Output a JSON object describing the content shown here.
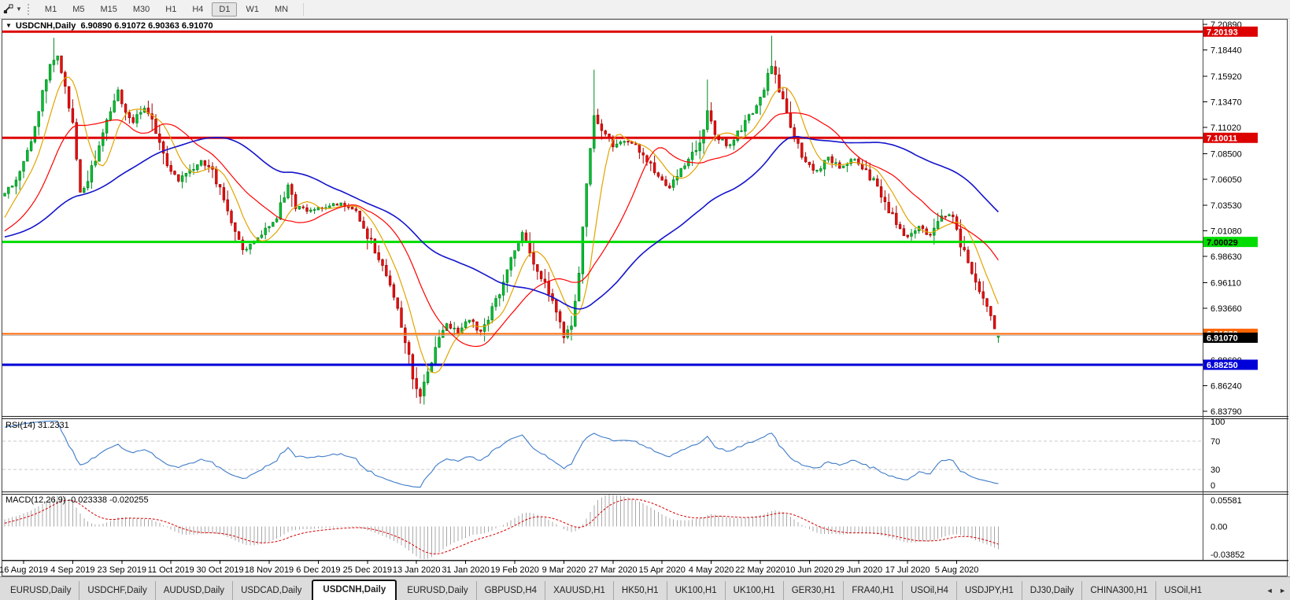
{
  "toolbar": {
    "dropdown_caret": "▼",
    "timeframes": [
      "M1",
      "M5",
      "M15",
      "M30",
      "H1",
      "H4",
      "D1",
      "W1",
      "MN"
    ],
    "active_timeframe": "D1"
  },
  "chart_header": {
    "collapse_icon": "▼",
    "symbol": "USDCNH,Daily",
    "ohlc": "6.90890 6.91072 6.90363 6.91070"
  },
  "price_axis": {
    "ticks": [
      "7.20890",
      "7.18440",
      "7.15920",
      "7.13470",
      "7.11020",
      "7.08500",
      "7.06050",
      "7.03530",
      "7.01080",
      "6.98630",
      "6.96110",
      "6.93660",
      "6.91210",
      "6.88690",
      "6.86240",
      "6.83790"
    ],
    "markers": [
      {
        "label": "7.20193",
        "price": 7.20193,
        "bg": "#DD0000",
        "fg": "#FFFFFF"
      },
      {
        "label": "7.10011",
        "price": 7.10011,
        "bg": "#DD0000",
        "fg": "#FFFFFF"
      },
      {
        "label": "7.00029",
        "price": 7.00029,
        "bg": "#00DC00",
        "fg": "#000000"
      },
      {
        "label": "6.91220",
        "price": 6.9122,
        "bg": "#FF6600",
        "fg": "#FFFFFF"
      },
      {
        "label": "6.91070",
        "price": 6.9107,
        "bg": "#000000",
        "fg": "#FFFFFF"
      },
      {
        "label": "6.88250",
        "price": 6.8825,
        "bg": "#0000D8",
        "fg": "#FFFFFF"
      }
    ]
  },
  "indicators": {
    "rsi": {
      "label": "RSI(14) 31.2331",
      "period": 14,
      "value": 31.2331,
      "levels": [
        "100",
        "70",
        "30",
        "0"
      ]
    },
    "macd": {
      "label": "MACD(12,26,9) -0.023338 -0.020255",
      "fast": 12,
      "slow": 26,
      "signal": 9,
      "value": -0.023338,
      "signal_value": -0.020255,
      "scale": [
        "0.05581",
        "0.00",
        "-0.03852"
      ]
    }
  },
  "date_axis": [
    "16 Aug 2019",
    "4 Sep 2019",
    "23 Sep 2019",
    "11 Oct 2019",
    "30 Oct 2019",
    "18 Nov 2019",
    "6 Dec 2019",
    "25 Dec 2019",
    "13 Jan 2020",
    "31 Jan 2020",
    "19 Feb 2020",
    "9 Mar 2020",
    "27 Mar 2020",
    "15 Apr 2020",
    "4 May 2020",
    "22 May 2020",
    "10 Jun 2020",
    "29 Jun 2020",
    "17 Jul 2020",
    "5 Aug 2020"
  ],
  "tabs": {
    "items": [
      {
        "label": "EURUSD,Daily",
        "active": false
      },
      {
        "label": "USDCHF,Daily",
        "active": false
      },
      {
        "label": "AUDUSD,Daily",
        "active": false
      },
      {
        "label": "USDCAD,Daily",
        "active": false
      },
      {
        "label": "USDCNH,Daily",
        "active": true
      },
      {
        "label": "EURUSD,Daily",
        "active": false
      },
      {
        "label": "GBPUSD,H4",
        "active": false
      },
      {
        "label": "XAUUSD,H1",
        "active": false
      },
      {
        "label": "HK50,H1",
        "active": false
      },
      {
        "label": "UK100,H1",
        "active": false
      },
      {
        "label": "UK100,H1",
        "active": false
      },
      {
        "label": "GER30,H1",
        "active": false
      },
      {
        "label": "FRA40,H1",
        "active": false
      },
      {
        "label": "USOil,H4",
        "active": false
      },
      {
        "label": "USDJPY,H1",
        "active": false
      },
      {
        "label": "DJ30,Daily",
        "active": false
      },
      {
        "label": "CHINA300,H1",
        "active": false
      },
      {
        "label": "USOil,H1",
        "active": false
      }
    ],
    "scroll_left": "◄",
    "scroll_right": "►"
  },
  "chart_data": {
    "type": "candlestick",
    "symbol": "USDCNH",
    "timeframe": "Daily",
    "last_ohlc": {
      "open": 6.9089,
      "high": 6.91072,
      "low": 6.90363,
      "close": 6.9107
    },
    "days": 264,
    "first_label_day": 5,
    "label_step_days": 13,
    "y_axis_top": 7.2089,
    "y_axis_bottom": 6.8379,
    "price_path": [
      [
        0,
        7.048
      ],
      [
        3,
        7.058
      ],
      [
        6,
        7.085
      ],
      [
        9,
        7.128
      ],
      [
        12,
        7.17
      ],
      [
        14,
        7.178
      ],
      [
        16,
        7.15
      ],
      [
        18,
        7.112
      ],
      [
        20,
        7.048
      ],
      [
        22,
        7.06
      ],
      [
        25,
        7.092
      ],
      [
        28,
        7.125
      ],
      [
        30,
        7.146
      ],
      [
        32,
        7.128
      ],
      [
        34,
        7.116
      ],
      [
        37,
        7.13
      ],
      [
        40,
        7.108
      ],
      [
        43,
        7.072
      ],
      [
        46,
        7.058
      ],
      [
        49,
        7.068
      ],
      [
        52,
        7.078
      ],
      [
        55,
        7.07
      ],
      [
        58,
        7.04
      ],
      [
        61,
        7.008
      ],
      [
        63,
        6.992
      ],
      [
        66,
        7.0
      ],
      [
        69,
        7.012
      ],
      [
        72,
        7.024
      ],
      [
        75,
        7.056
      ],
      [
        77,
        7.034
      ],
      [
        81,
        7.03
      ],
      [
        85,
        7.034
      ],
      [
        89,
        7.038
      ],
      [
        93,
        7.028
      ],
      [
        97,
        7.0
      ],
      [
        100,
        6.98
      ],
      [
        103,
        6.948
      ],
      [
        106,
        6.908
      ],
      [
        108,
        6.872
      ],
      [
        110,
        6.852
      ],
      [
        112,
        6.872
      ],
      [
        114,
        6.902
      ],
      [
        117,
        6.922
      ],
      [
        120,
        6.912
      ],
      [
        123,
        6.926
      ],
      [
        126,
        6.914
      ],
      [
        129,
        6.934
      ],
      [
        132,
        6.962
      ],
      [
        135,
        6.995
      ],
      [
        137,
        7.008
      ],
      [
        139,
        6.99
      ],
      [
        142,
        6.968
      ],
      [
        145,
        6.942
      ],
      [
        147,
        6.92
      ],
      [
        148,
        6.908
      ],
      [
        150,
        6.922
      ],
      [
        152,
        6.972
      ],
      [
        154,
        7.058
      ],
      [
        156,
        7.122
      ],
      [
        158,
        7.108
      ],
      [
        161,
        7.092
      ],
      [
        164,
        7.098
      ],
      [
        167,
        7.095
      ],
      [
        170,
        7.078
      ],
      [
        173,
        7.062
      ],
      [
        176,
        7.052
      ],
      [
        179,
        7.068
      ],
      [
        182,
        7.085
      ],
      [
        184,
        7.098
      ],
      [
        186,
        7.126
      ],
      [
        188,
        7.105
      ],
      [
        191,
        7.092
      ],
      [
        194,
        7.104
      ],
      [
        197,
        7.12
      ],
      [
        200,
        7.138
      ],
      [
        202,
        7.158
      ],
      [
        203,
        7.168
      ],
      [
        205,
        7.148
      ],
      [
        207,
        7.122
      ],
      [
        209,
        7.1
      ],
      [
        212,
        7.078
      ],
      [
        215,
        7.068
      ],
      [
        218,
        7.082
      ],
      [
        221,
        7.07
      ],
      [
        224,
        7.08
      ],
      [
        227,
        7.072
      ],
      [
        230,
        7.058
      ],
      [
        233,
        7.038
      ],
      [
        236,
        7.016
      ],
      [
        239,
        7.004
      ],
      [
        242,
        7.014
      ],
      [
        245,
        7.006
      ],
      [
        248,
        7.024
      ],
      [
        251,
        7.026
      ],
      [
        253,
        6.998
      ],
      [
        256,
        6.972
      ],
      [
        258,
        6.955
      ],
      [
        260,
        6.936
      ],
      [
        262,
        6.919
      ],
      [
        263,
        6.9107
      ]
    ],
    "extremes": [
      {
        "day": 13,
        "high": 7.196
      },
      {
        "day": 110,
        "low": 6.8452
      },
      {
        "day": 148,
        "low": 6.903
      },
      {
        "day": 156,
        "high": 7.1655
      },
      {
        "day": 186,
        "high": 7.156
      },
      {
        "day": 203,
        "high": 7.198
      },
      {
        "day": 263,
        "low": 6.90363
      }
    ],
    "horizontal_lines": [
      {
        "price": 7.20193,
        "color": "#DD0000",
        "width": 3
      },
      {
        "price": 7.10011,
        "color": "#DD0000",
        "width": 3
      },
      {
        "price": 7.00029,
        "color": "#00DC00",
        "width": 3
      },
      {
        "price": 6.9122,
        "color": "#FF6600",
        "width": 2
      },
      {
        "price": 6.9107,
        "color": "#BBBBBB",
        "width": 1
      },
      {
        "price": 6.8825,
        "color": "#0000D8",
        "width": 3
      }
    ],
    "moving_averages": [
      {
        "period": 8,
        "color": "#E2A400"
      },
      {
        "period": 20,
        "color": "#FF0000"
      },
      {
        "period": 55,
        "color": "#1414CC"
      }
    ],
    "rsi": {
      "period": 14,
      "current": 31.2331,
      "levels": [
        70,
        30
      ],
      "range": [
        0,
        100
      ],
      "color": "#3E7BC8"
    },
    "macd": {
      "fast": 12,
      "slow": 26,
      "signal": 9,
      "current_main": -0.023338,
      "current_signal": -0.020255,
      "scale_max": 0.05581,
      "scale_min": -0.03852,
      "bar_color": "#A8A8A8",
      "signal_color": "#D40000"
    },
    "candle_colors": {
      "up": "#00C432",
      "up_border": "#008A22",
      "down": "#EE1111",
      "down_border": "#A80000"
    }
  }
}
